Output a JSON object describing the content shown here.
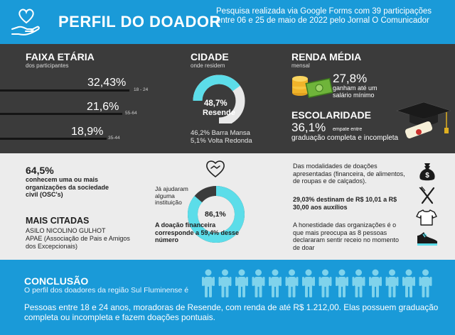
{
  "header": {
    "title": "PERFIL DO DOADOR",
    "description": "Pesquisa realizada via Google Forms com 39 participações entre 06 e 25 de maio de 2022 pelo Jornal O Comunicador"
  },
  "age": {
    "title": "FAIXA ETÁRIA",
    "subtitle": "dos participantes",
    "items": [
      {
        "percent": "32,43%",
        "range": "18 - 24",
        "value": 32.43
      },
      {
        "percent": "21,6%",
        "range": "55-64",
        "value": 21.6
      },
      {
        "percent": "18,9%",
        "range": "35-44",
        "value": 18.9
      }
    ]
  },
  "city": {
    "title": "CIDADE",
    "subtitle": "onde residem",
    "main_percent": "48,7%",
    "main_city": "Resende",
    "main_value": 48.7,
    "others": [
      "46,2% Barra Mansa",
      "5,1% Volta Redonda"
    ]
  },
  "income": {
    "title": "RENDA MÉDIA",
    "subtitle": "mensal",
    "percent": "27,8%",
    "text": "ganham até um salário mínimo"
  },
  "education": {
    "title": "ESCOLARIDADE",
    "percent": "36,1%",
    "text_a": "empate entre",
    "text_b": "graduação completa e incompleta"
  },
  "organizations": {
    "percent": "64,5%",
    "text": "conhecem uma ou mais organizações da sociedade civil (OSC's)",
    "cited_title": "MAIS CITADAS",
    "cited": [
      "ASILO NICOLINO GULHOT",
      "APAE (Associação de Pais e Amigos dos Excepcionais)"
    ]
  },
  "help": {
    "label": "Já ajudaram alguma instituição",
    "percent": "86,1%",
    "value": 86.1,
    "note": "A doação financeira corresponde a 59,4% desse número"
  },
  "donations": {
    "modalities": "Das modalidades de doações apresentadas (financeira, de alimentos, de roupas e de calçados).",
    "highlight": "29,03% destinam de R$ 10,01 a R$ 30,00 aos auxílios",
    "honesty": "A honestidade das organizações é o que mais preocupa as 8 pessoas declararam sentir receio no momento de doar"
  },
  "conclusion": {
    "title": "CONCLUSÃO",
    "subtitle": "O perfil dos doadores da região Sul Fluminense é",
    "text": "Pessoas entre 18 e 24 anos, moradoras de Resende, com renda de até R$ 1.212,00. Elas possuem graduação completa ou incompleta e fazem doações pontuais."
  },
  "colors": {
    "blue": "#1a9ad8",
    "cyan": "#5cdde9",
    "dark": "#3b3b3b",
    "light": "#ececec",
    "person": "#7fd3ec"
  },
  "icons": [
    "heart-hand-icon",
    "coins-icon",
    "cash-icon",
    "graduation-cap-icon",
    "diploma-icon",
    "heart-handshake-icon",
    "money-bag-icon",
    "fork-knife-icon",
    "shirt-icon",
    "sneaker-icon",
    "person-icon"
  ]
}
